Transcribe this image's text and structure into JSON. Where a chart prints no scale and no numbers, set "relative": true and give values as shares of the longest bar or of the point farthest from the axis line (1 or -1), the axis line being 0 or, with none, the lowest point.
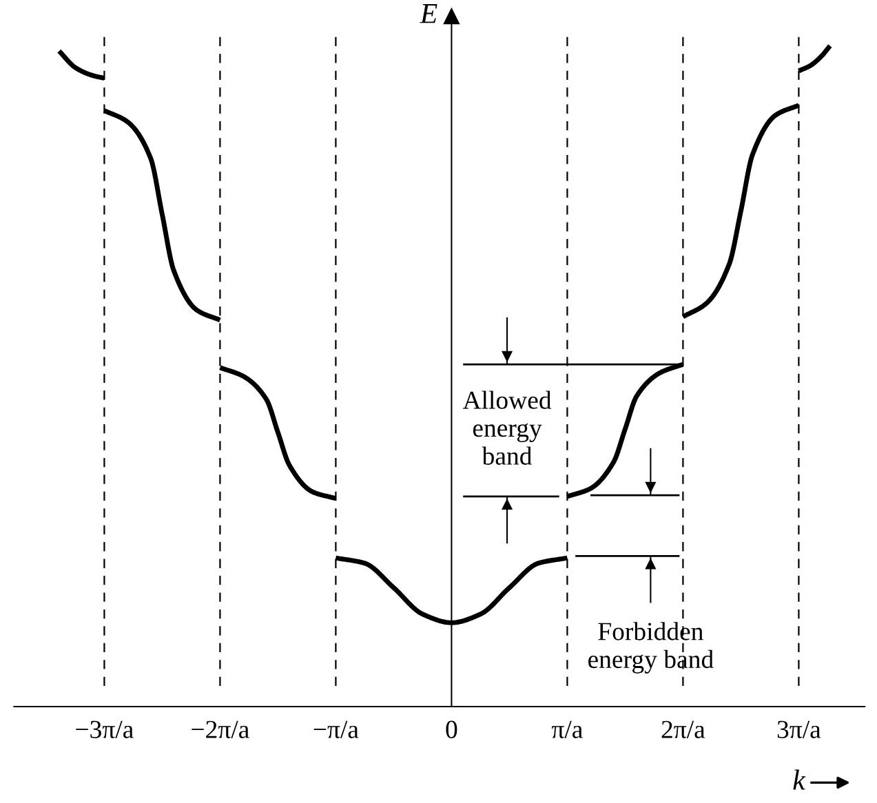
{
  "chart_data": {
    "type": "line",
    "relative": true,
    "xlabel": "k",
    "ylabel": "E",
    "xlim": [
      -3.78,
      3.57
    ],
    "xticks": [
      {
        "value": -3,
        "label": "−3π/a"
      },
      {
        "value": -2,
        "label": "−2π/a"
      },
      {
        "value": -1,
        "label": "−π/a"
      },
      0,
      {
        "value": 1,
        "label": "π/a"
      },
      {
        "value": 2,
        "label": "2π/a"
      },
      {
        "value": 3,
        "label": "3π/a"
      }
    ],
    "series": [
      {
        "color": "#000000",
        "x": [
          -1,
          -0.75,
          -0.5,
          -0.25,
          0,
          0.25,
          0.5,
          0.75,
          1
        ],
        "values": [
          0.225,
          0.217,
          0.18,
          0.14,
          0.127,
          0.14,
          0.18,
          0.217,
          0.225
        ]
      },
      {
        "color": "#000000",
        "x": [
          -2,
          -1.8,
          -1.6,
          -1.5,
          -1.4,
          -1.2,
          -1
        ],
        "values": [
          0.513,
          0.5,
          0.465,
          0.415,
          0.365,
          0.325,
          0.315
        ]
      },
      {
        "color": "#000000",
        "x": [
          1,
          1.2,
          1.4,
          1.5,
          1.6,
          1.8,
          2
        ],
        "values": [
          0.318,
          0.33,
          0.37,
          0.42,
          0.47,
          0.505,
          0.518
        ]
      },
      {
        "color": "#000000",
        "x": [
          -3,
          -2.8,
          -2.6,
          -2.5,
          -2.4,
          -2.2,
          -2
        ],
        "values": [
          0.902,
          0.885,
          0.83,
          0.745,
          0.66,
          0.6,
          0.585
        ]
      },
      {
        "color": "#000000",
        "x": [
          2,
          2.2,
          2.4,
          2.5,
          2.6,
          2.8,
          3
        ],
        "values": [
          0.59,
          0.61,
          0.67,
          0.75,
          0.835,
          0.895,
          0.91
        ]
      },
      {
        "color": "#000000",
        "x": [
          -3.39,
          -3.25,
          -3.1,
          -3
        ],
        "values": [
          0.992,
          0.967,
          0.955,
          0.951
        ]
      },
      {
        "color": "#000000",
        "x": [
          3,
          3.1,
          3.2,
          3.27
        ],
        "values": [
          0.962,
          0.97,
          0.985,
          1.0
        ]
      },
      {
        "color": "#000000",
        "x": [
          0.1,
          2.0
        ],
        "values": [
          0.518,
          0.518
        ]
      },
      {
        "color": "#000000",
        "x": [
          0.1,
          0.93
        ],
        "values": [
          0.318,
          0.318
        ]
      },
      {
        "color": "#000000",
        "x": [
          1.2,
          1.97
        ],
        "values": [
          0.32,
          0.32
        ]
      },
      {
        "color": "#000000",
        "x": [
          1.07,
          1.97
        ],
        "values": [
          0.228,
          0.228
        ]
      }
    ],
    "annotations": [
      "Allowed\nenergy\nband",
      "Forbidden\nenergy band"
    ],
    "ref_lines": [
      {
        "axis": "x",
        "value": -3,
        "line_style": "dashed"
      },
      {
        "axis": "x",
        "value": -2,
        "line_style": "dashed"
      },
      {
        "axis": "x",
        "value": -1,
        "line_style": "dashed"
      },
      {
        "axis": "x",
        "value": 1,
        "line_style": "dashed"
      },
      {
        "axis": "x",
        "value": 2,
        "line_style": "dashed"
      },
      {
        "axis": "x",
        "value": 3,
        "line_style": "dashed"
      }
    ],
    "grid": false,
    "legend": false,
    "marker": "none",
    "line_style": "solid"
  }
}
